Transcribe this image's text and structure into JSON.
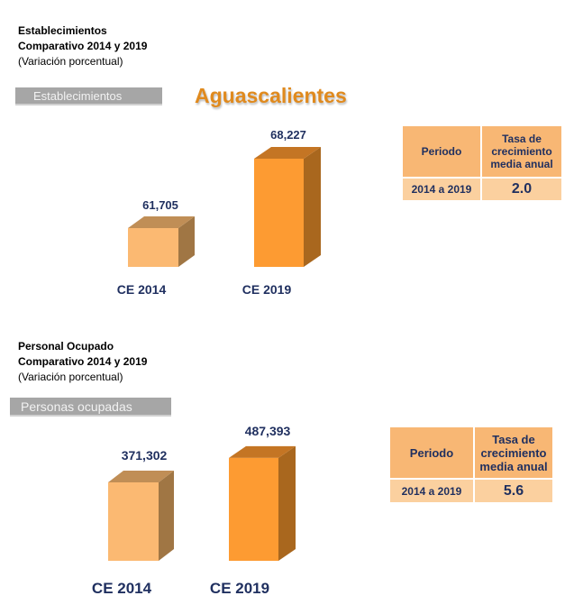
{
  "section1": {
    "title": "Establecimientos",
    "subtitle": "Comparativo 2014 y 2019",
    "note": "(Variación porcentual)",
    "banner": "Establecimientos",
    "state": "Aguascalientes",
    "table": {
      "col1": "Periodo",
      "col2": "Tasa de crecimiento media anual",
      "period": "2014 a 2019",
      "rate": "2.0"
    }
  },
  "section2": {
    "title": "Personal Ocupado",
    "subtitle": "Comparativo 2014 y 2019",
    "note": "(Variación porcentual)",
    "banner": "Personas ocupadas",
    "table": {
      "col1": "Periodo",
      "col2": "Tasa de crecimiento media anual",
      "period": "2014 a 2019",
      "rate": "5.6"
    }
  },
  "colors": {
    "light_front": "#fbb972",
    "light_side": "#a07644",
    "light_top": "#c08e56",
    "dark_front": "#fd9b32",
    "dark_side": "#a9671e",
    "dark_top": "#c47524",
    "label": "#1f2f5f"
  },
  "chart_data": [
    {
      "type": "bar",
      "title": "Establecimientos",
      "categories": [
        "CE 2014",
        "CE 2019"
      ],
      "values": [
        61705,
        68227
      ],
      "labels": [
        "61,705",
        "68,227"
      ],
      "ylim": [
        58064,
        69072
      ]
    },
    {
      "type": "bar",
      "title": "Personas ocupadas",
      "categories": [
        "CE 2014",
        "CE 2019"
      ],
      "values": [
        371302,
        487393
      ],
      "labels": [
        "371,302",
        "487,393"
      ],
      "ylim": [
        0,
        555000
      ]
    }
  ]
}
